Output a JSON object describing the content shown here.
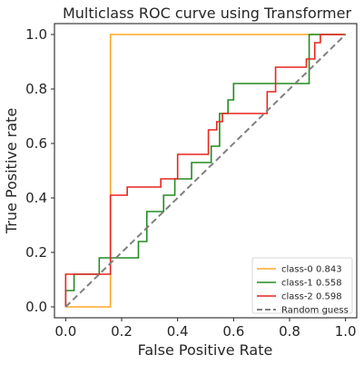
{
  "chart_data": {
    "type": "line",
    "title": "Multiclass ROC curve using Transformer",
    "xlabel": "False Positive Rate",
    "ylabel": "True Positive rate",
    "xlim": [
      -0.04,
      1.04
    ],
    "ylim": [
      -0.04,
      1.04
    ],
    "xticks": [
      "0.0",
      "0.2",
      "0.4",
      "0.6",
      "0.8",
      "1.0"
    ],
    "yticks": [
      "0.0",
      "0.2",
      "0.4",
      "0.6",
      "0.8",
      "1.0"
    ],
    "grid": false,
    "legend_position": "lower-right",
    "series": [
      {
        "name": "class-0 0.843",
        "color": "#ffa726",
        "style": "solid",
        "points": [
          [
            0.0,
            0.0
          ],
          [
            0.16,
            0.0
          ],
          [
            0.16,
            1.0
          ],
          [
            1.0,
            1.0
          ]
        ]
      },
      {
        "name": "class-1 0.558",
        "color": "#228b22",
        "style": "solid",
        "points": [
          [
            0.0,
            0.0
          ],
          [
            0.0,
            0.06
          ],
          [
            0.03,
            0.06
          ],
          [
            0.03,
            0.12
          ],
          [
            0.12,
            0.12
          ],
          [
            0.12,
            0.18
          ],
          [
            0.16,
            0.18
          ],
          [
            0.16,
            0.18
          ],
          [
            0.26,
            0.18
          ],
          [
            0.26,
            0.24
          ],
          [
            0.29,
            0.24
          ],
          [
            0.29,
            0.35
          ],
          [
            0.35,
            0.35
          ],
          [
            0.35,
            0.41
          ],
          [
            0.39,
            0.41
          ],
          [
            0.39,
            0.47
          ],
          [
            0.45,
            0.47
          ],
          [
            0.45,
            0.53
          ],
          [
            0.52,
            0.53
          ],
          [
            0.52,
            0.59
          ],
          [
            0.55,
            0.59
          ],
          [
            0.55,
            0.71
          ],
          [
            0.58,
            0.71
          ],
          [
            0.58,
            0.76
          ],
          [
            0.6,
            0.76
          ],
          [
            0.6,
            0.82
          ],
          [
            0.87,
            0.82
          ],
          [
            0.87,
            0.88
          ],
          [
            0.87,
            0.88
          ],
          [
            0.87,
            1.0
          ],
          [
            1.0,
            1.0
          ]
        ]
      },
      {
        "name": "class-2 0.598",
        "color": "#e8251f",
        "style": "solid",
        "points": [
          [
            0.0,
            0.0
          ],
          [
            0.0,
            0.12
          ],
          [
            0.16,
            0.12
          ],
          [
            0.16,
            0.41
          ],
          [
            0.22,
            0.41
          ],
          [
            0.22,
            0.44
          ],
          [
            0.34,
            0.44
          ],
          [
            0.34,
            0.47
          ],
          [
            0.4,
            0.47
          ],
          [
            0.4,
            0.56
          ],
          [
            0.51,
            0.56
          ],
          [
            0.51,
            0.65
          ],
          [
            0.54,
            0.65
          ],
          [
            0.54,
            0.68
          ],
          [
            0.56,
            0.68
          ],
          [
            0.56,
            0.71
          ],
          [
            0.72,
            0.71
          ],
          [
            0.72,
            0.79
          ],
          [
            0.75,
            0.79
          ],
          [
            0.75,
            0.88
          ],
          [
            0.86,
            0.88
          ],
          [
            0.86,
            0.91
          ],
          [
            0.89,
            0.91
          ],
          [
            0.89,
            0.97
          ],
          [
            0.91,
            0.97
          ],
          [
            0.91,
            1.0
          ],
          [
            1.0,
            1.0
          ]
        ]
      },
      {
        "name": "Random guess",
        "color": "#808080",
        "style": "dashed",
        "points": [
          [
            0.0,
            0.0
          ],
          [
            1.0,
            1.0
          ]
        ]
      }
    ]
  }
}
